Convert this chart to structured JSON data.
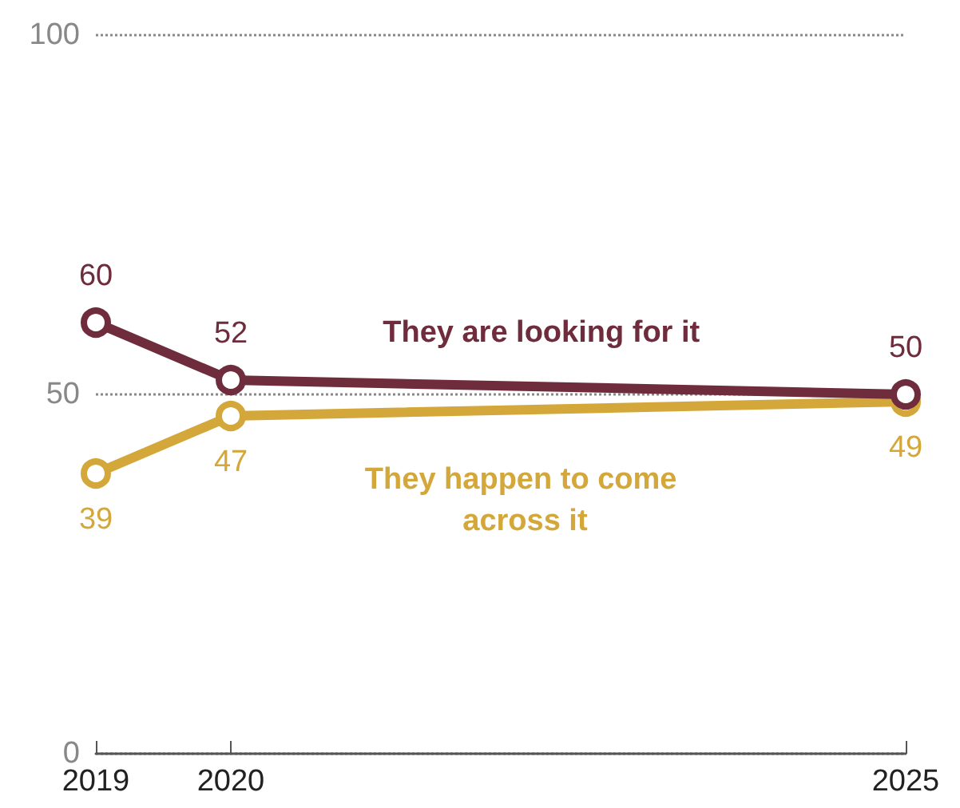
{
  "chart_data": {
    "type": "line",
    "x": [
      2019,
      2020,
      2025
    ],
    "xlim": [
      2019,
      2025
    ],
    "xticks": [
      2019,
      2020,
      2025
    ],
    "ylim": [
      0,
      100
    ],
    "yticks": [
      0,
      50,
      100
    ],
    "grid": "y",
    "marker": "circle",
    "data_labels": true,
    "series": [
      {
        "name": "They are looking for it",
        "color": "#6e2c3c",
        "values": [
          60,
          52,
          50
        ]
      },
      {
        "name": "They happen to come across it",
        "color": "#d4a73a",
        "values": [
          39,
          47,
          49
        ]
      }
    ]
  }
}
